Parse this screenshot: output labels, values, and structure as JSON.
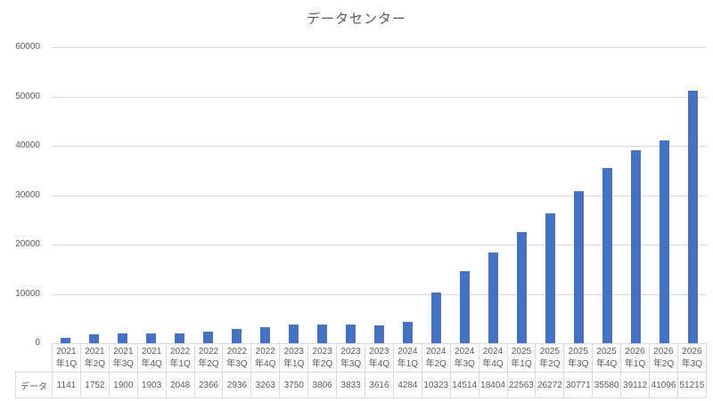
{
  "chart_data": {
    "type": "bar",
    "title": "データセンター",
    "series_label": "データ",
    "categories": [
      "2021年1Q",
      "2021年2Q",
      "2021年3Q",
      "2021年4Q",
      "2022年1Q",
      "2022年2Q",
      "2022年3Q",
      "2022年4Q",
      "2023年1Q",
      "2023年2Q",
      "2023年3Q",
      "2023年4Q",
      "2024年1Q",
      "2024年2Q",
      "2024年3Q",
      "2024年4Q",
      "2025年1Q",
      "2025年2Q",
      "2025年3Q",
      "2025年4Q",
      "2026年1Q",
      "2026年2Q",
      "2026年3Q"
    ],
    "values": [
      1141,
      1752,
      1900,
      1903,
      2048,
      2366,
      2936,
      3263,
      3750,
      3806,
      3833,
      3616,
      4284,
      10323,
      14514,
      18404,
      22563,
      26272,
      30771,
      35580,
      39112,
      41096,
      51215
    ],
    "xlabel": "",
    "ylabel": "",
    "ylim": [
      0,
      60000
    ],
    "yticks": [
      "0",
      "10000",
      "20000",
      "30000",
      "40000",
      "50000",
      "60000"
    ],
    "grid": true,
    "legend_position": "data-table",
    "bar_color": "#4472c4",
    "gridline_color": "#d9d9d9",
    "text_color": "#595959"
  }
}
